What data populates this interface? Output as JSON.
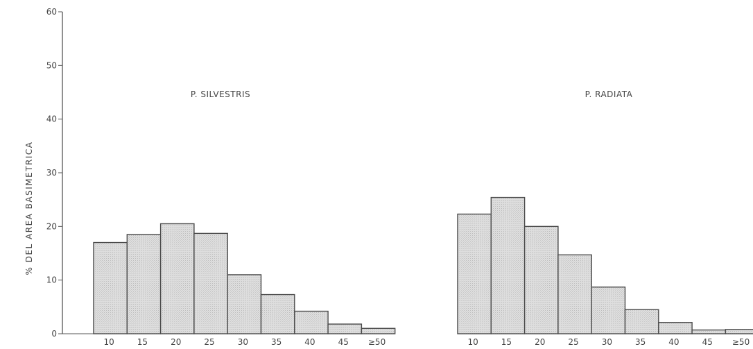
{
  "chart_data": [
    {
      "type": "bar",
      "title": "P. SILVESTRIS",
      "ylabel": "% DEL AREA BASIMETRICA",
      "ylim": [
        0,
        60
      ],
      "yticks": [
        "0",
        "10",
        "20",
        "30",
        "40",
        "50",
        "60"
      ],
      "categories": [
        "10",
        "15",
        "20",
        "25",
        "30",
        "35",
        "40",
        "45",
        "≥50"
      ],
      "values": [
        17,
        18.5,
        20.5,
        18.7,
        11,
        7.3,
        4.2,
        1.8,
        1
      ]
    },
    {
      "type": "bar",
      "title": "P. RADIATA",
      "ylim": [
        0,
        60
      ],
      "categories": [
        "10",
        "15",
        "20",
        "25",
        "30",
        "35",
        "40",
        "45",
        "≥50"
      ],
      "values": [
        22.3,
        25.4,
        20,
        14.7,
        8.7,
        4.5,
        2.1,
        0.7,
        0.8
      ]
    }
  ],
  "colors": {
    "bar_fill": "#d9d9d9",
    "bar_stroke": "#4a4a4a",
    "axis": "#555555",
    "text": "#444444"
  }
}
